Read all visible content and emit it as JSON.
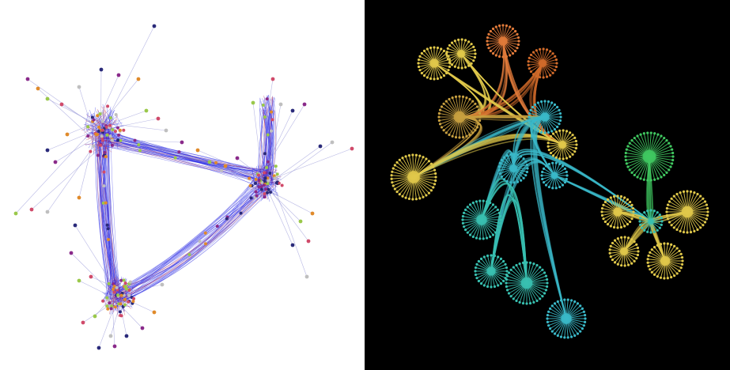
{
  "figure": {
    "left_panel": {
      "background": "#ffffff",
      "edge_colors": [
        "#2d2de6",
        "#c0304a",
        "#9a9ad8"
      ],
      "node_colors": [
        "#2a2a7a",
        "#8a2a8a",
        "#e08a2a",
        "#9ac84a",
        "#d04a6a",
        "#bfbfbf"
      ]
    },
    "right_panel": {
      "background": "#000000",
      "cluster_colors": [
        "#e0c84a",
        "#e07a3a",
        "#d06a2a",
        "#c8a040",
        "#3ab8c8",
        "#40c860",
        "#38c0b0"
      ]
    }
  }
}
